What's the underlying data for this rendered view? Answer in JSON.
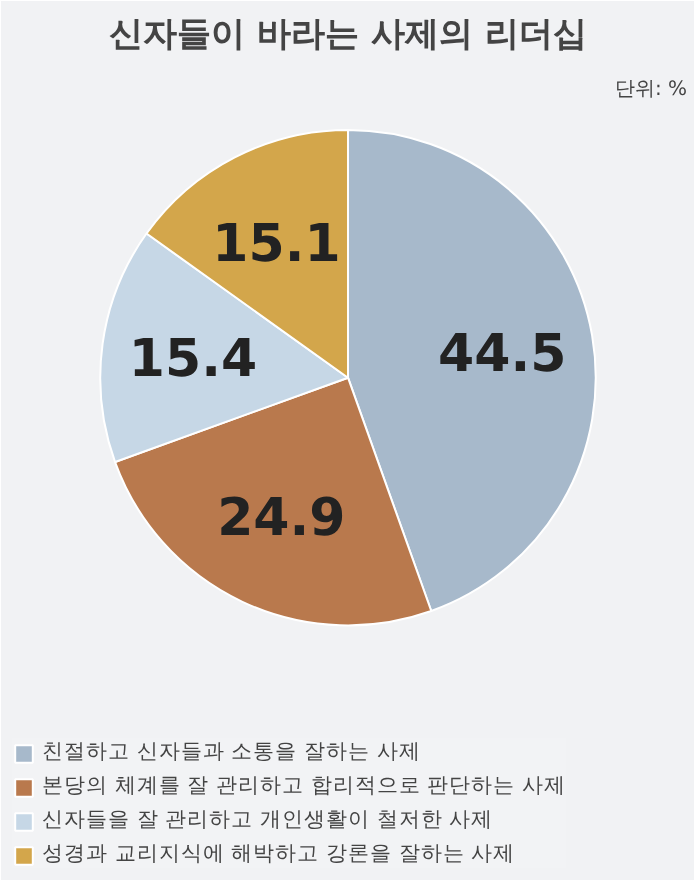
{
  "chart_data": {
    "type": "pie",
    "title": "신자들이 바라는 사제의 리더십",
    "annotations": [
      "단위: %"
    ],
    "categories": [
      "친절하고 신자들과 소통을 잘하는 사제",
      "본당의 체계를 잘 관리하고 합리적으로 판단하는 사제",
      "신자들을 잘 관리하고 개인생활이 철저한 사제",
      "성경과 교리지식에 해박하고 강론을 잘하는 사제"
    ],
    "values": [
      44.5,
      24.9,
      15.4,
      15.1
    ],
    "colors": [
      "#a7b9cb",
      "#b9794d",
      "#c6d7e6",
      "#d3a64b"
    ],
    "data_labels": true,
    "legend": "bottom"
  }
}
